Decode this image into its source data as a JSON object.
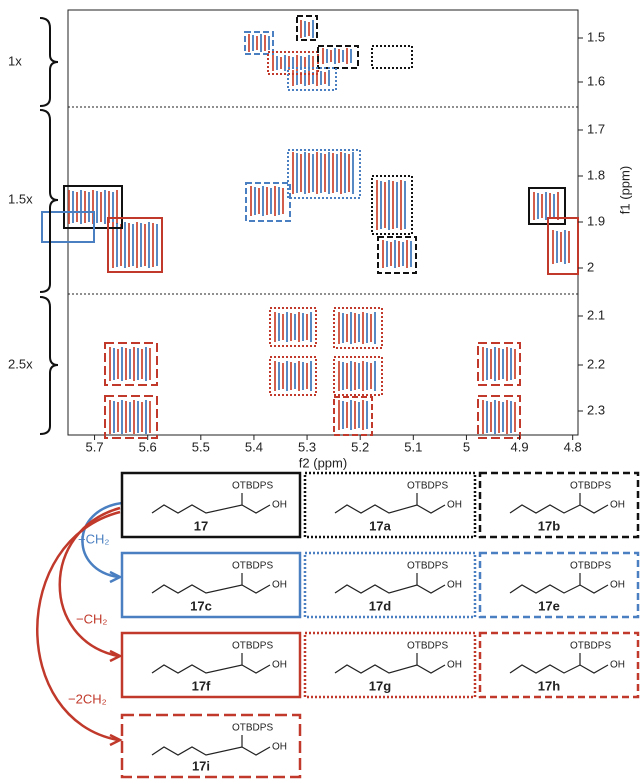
{
  "spectrum": {
    "x_label": "f2 (ppm)",
    "y_label": "f1 (ppm)",
    "xlim": [
      5.75,
      4.79
    ],
    "xticks": [
      5.7,
      5.6,
      5.5,
      5.4,
      5.3,
      5.2,
      5.1,
      5.0,
      4.9,
      4.8
    ],
    "yticks": [
      1.5,
      1.6,
      1.7,
      1.8,
      1.9,
      2.0,
      2.1,
      2.2,
      2.3
    ],
    "scale_labels": [
      "1x",
      "1.5x",
      "2.5x"
    ]
  },
  "annotations": {
    "plus_ch2": "+CH₂",
    "minus_ch2": "−CH₂",
    "minus_2ch2": "−2CH₂"
  },
  "compounds": [
    {
      "label": "17",
      "substituent": "OTBDPS",
      "hydroxyl": "OH"
    },
    {
      "label": "17a",
      "substituent": "OTBDPS",
      "hydroxyl": "OH"
    },
    {
      "label": "17b",
      "substituent": "OTBDPS",
      "hydroxyl": "OH"
    },
    {
      "label": "17c",
      "substituent": "OTBDPS",
      "hydroxyl": "OH"
    },
    {
      "label": "17d",
      "substituent": "OTBDPS",
      "hydroxyl": "OH"
    },
    {
      "label": "17e",
      "substituent": "OTBDPS",
      "hydroxyl": "OH"
    },
    {
      "label": "17f",
      "substituent": "OTBDPS",
      "hydroxyl": "OH"
    },
    {
      "label": "17g",
      "substituent": "OTBDPS",
      "hydroxyl": "OH"
    },
    {
      "label": "17h",
      "substituent": "OTBDPS",
      "hydroxyl": "OH"
    },
    {
      "label": "17i",
      "substituent": "OTBDPS",
      "hydroxyl": "OH"
    }
  ]
}
